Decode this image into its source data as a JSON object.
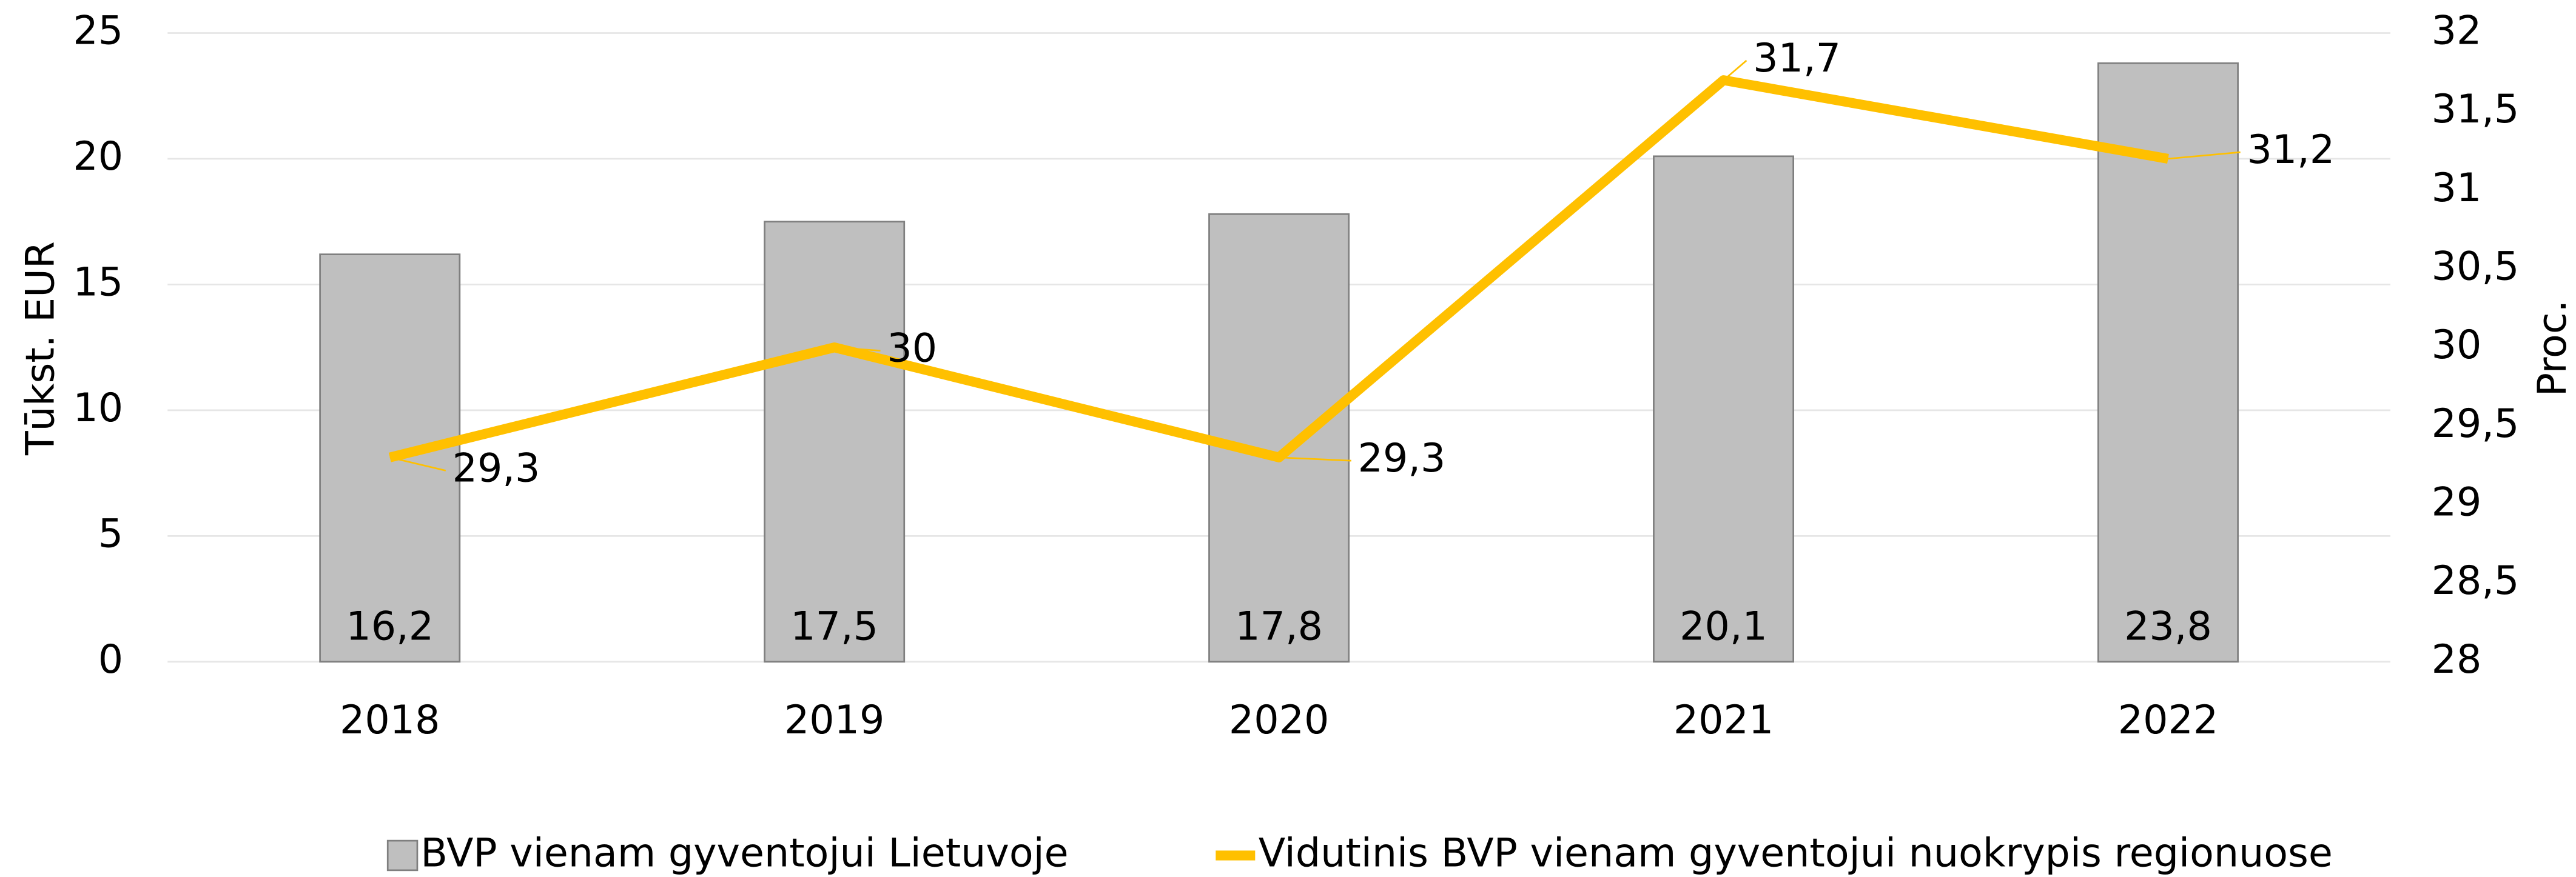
{
  "chart_data": {
    "type": "bar-line",
    "categories": [
      "2018",
      "2019",
      "2020",
      "2021",
      "2022"
    ],
    "series": [
      {
        "name": "BVP vienam gyventojui Lietuvoje",
        "type": "bar",
        "color": "#bfbfbf",
        "stroke": "#7f7f7f",
        "values": [
          16.2,
          17.5,
          17.8,
          20.1,
          23.8
        ],
        "value_labels": [
          "16,2",
          "17,5",
          "17,8",
          "20,1",
          "23,8"
        ]
      },
      {
        "name": "Vidutinis BVP vienam gyventojui nuokrypis regionuose",
        "type": "line",
        "axis": "y2",
        "color": "#ffc000",
        "values": [
          29.3,
          30,
          29.3,
          31.7,
          31.2
        ],
        "value_labels": [
          "29,3",
          "30",
          "29,3",
          "31,7",
          "31,2"
        ]
      }
    ],
    "y_label": "Tūkst. EUR",
    "y2_label": "Proc.",
    "ylim": [
      0,
      25
    ],
    "yticks": [
      0,
      5,
      10,
      15,
      20,
      25
    ],
    "y2lim": [
      28,
      32
    ],
    "y2ticks": [
      28,
      {
        "value": 28.5,
        "label": "28,5"
      },
      29,
      {
        "value": 29.5,
        "label": "29,5"
      },
      30,
      {
        "value": 30.5,
        "label": "30,5"
      },
      31,
      {
        "value": 31.5,
        "label": "31,5"
      },
      32
    ],
    "grid": true,
    "legend": "bottom"
  }
}
